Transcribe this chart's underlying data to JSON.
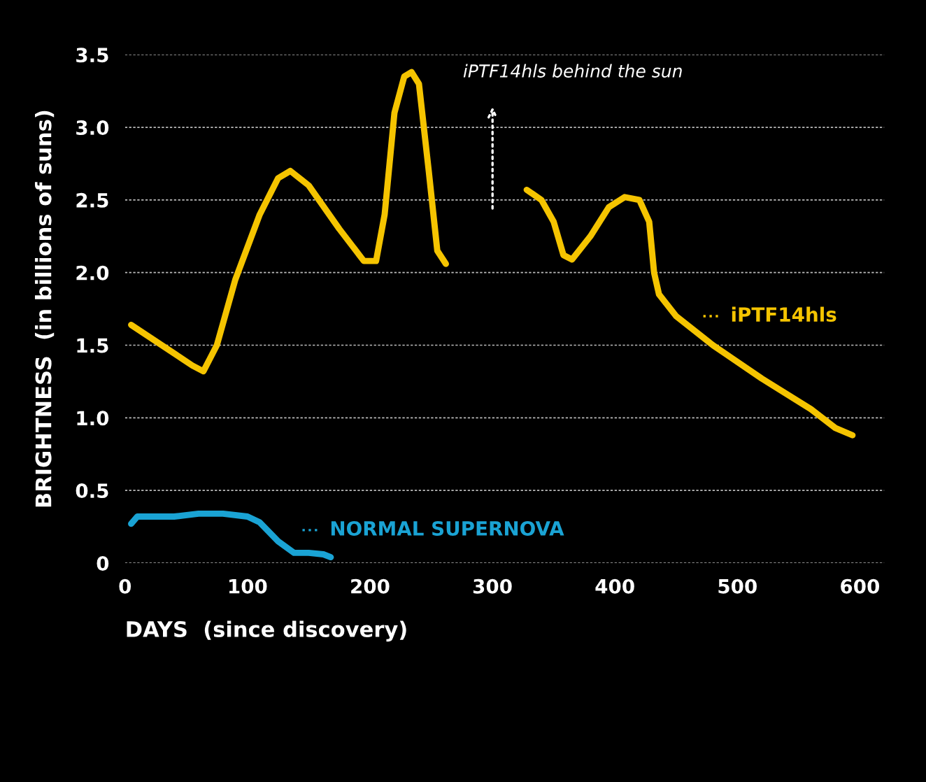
{
  "chart_data": {
    "type": "line",
    "xlabel": "DAYS  (since discovery)",
    "ylabel": "BRIGHTNESS  (in billions of suns)",
    "series": [
      {
        "name": "iPTF14hls",
        "color": "#f5c400",
        "x": [
          5,
          30,
          55,
          64,
          75,
          90,
          110,
          125,
          135,
          150,
          175,
          195,
          205,
          212,
          220,
          228,
          234,
          240,
          248,
          255,
          262,
          295,
          328,
          340,
          350,
          358,
          365,
          380,
          395,
          408,
          420,
          428,
          432,
          436,
          450,
          480,
          520,
          560,
          580,
          594
        ],
        "values": [
          1.64,
          1.5,
          1.36,
          1.32,
          1.5,
          1.95,
          2.4,
          2.65,
          2.7,
          2.6,
          2.3,
          2.08,
          2.08,
          2.4,
          3.1,
          3.35,
          3.38,
          3.3,
          2.7,
          2.15,
          2.06,
          null,
          2.57,
          2.5,
          2.35,
          2.12,
          2.09,
          2.25,
          2.45,
          2.52,
          2.5,
          2.35,
          2.0,
          1.85,
          1.7,
          1.5,
          1.27,
          1.06,
          0.93,
          0.88
        ]
      },
      {
        "name": "NORMAL SUPERNOVA",
        "color": "#1aa3d4",
        "x": [
          5,
          10,
          25,
          40,
          60,
          80,
          100,
          110,
          125,
          138,
          150,
          162,
          168
        ],
        "values": [
          0.27,
          0.32,
          0.32,
          0.32,
          0.34,
          0.34,
          0.32,
          0.28,
          0.15,
          0.07,
          0.07,
          0.06,
          0.04
        ]
      }
    ],
    "annotations": [
      "iPTF14hls behind the sun"
    ],
    "xlim": [
      0,
      620
    ],
    "ylim": [
      0,
      3.5
    ],
    "xticks": [
      0,
      100,
      200,
      300,
      400,
      500,
      600
    ],
    "yticks": [
      0,
      0.5,
      {
        "value": 1,
        "label": "1.0"
      },
      1.5,
      {
        "value": 2,
        "label": "2.0"
      },
      2.5,
      {
        "value": 3,
        "label": "3.0"
      },
      3.5
    ],
    "grid": "y",
    "line_style": "solid",
    "marker": "none",
    "legend": "right"
  }
}
